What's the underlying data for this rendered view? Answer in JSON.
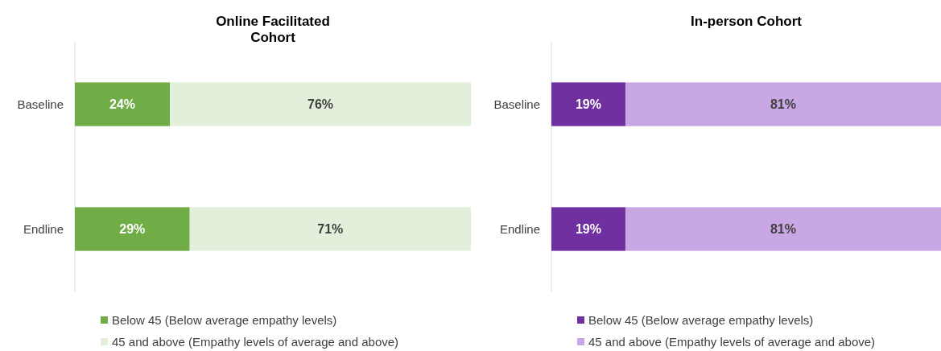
{
  "chart_data": [
    {
      "type": "bar",
      "title": "Online Facilitated Cohort",
      "orientation": "horizontal",
      "stacked": true,
      "categories": [
        "Baseline",
        "Endline"
      ],
      "xlim": [
        0,
        100
      ],
      "legend": "bottom",
      "series": [
        {
          "name": "Below 45 (Below average empathy levels)",
          "color": "#70ad47",
          "values": [
            24,
            29
          ],
          "value_labels": [
            "24%",
            "29%"
          ]
        },
        {
          "name": "45 and above (Empathy levels of average and above)",
          "color": "#e2efda",
          "values": [
            76,
            71
          ],
          "value_labels": [
            "76%",
            "71%"
          ]
        }
      ]
    },
    {
      "type": "bar",
      "title": "In-person Cohort",
      "orientation": "horizontal",
      "stacked": true,
      "categories": [
        "Baseline",
        "Endline"
      ],
      "xlim": [
        0,
        100
      ],
      "legend": "bottom",
      "series": [
        {
          "name": "Below 45 (Below average empathy levels)",
          "color": "#7030a0",
          "values": [
            19,
            19
          ],
          "value_labels": [
            "19%",
            "19%"
          ]
        },
        {
          "name": "45 and above (Empathy levels of average and above)",
          "color": "#c9a6e4",
          "values": [
            81,
            81
          ],
          "value_labels": [
            "81%",
            "81%"
          ]
        }
      ]
    }
  ]
}
